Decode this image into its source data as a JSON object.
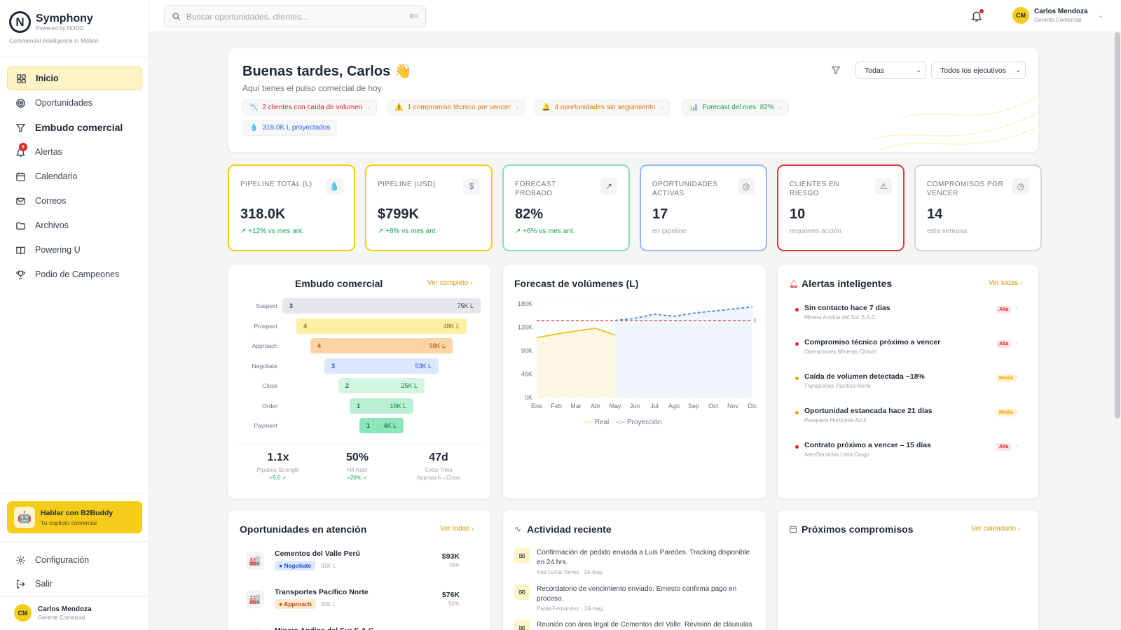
{
  "brand": {
    "name": "Symphony",
    "powered": "Powered by NODO",
    "tagline": "Commercial Intelligence in Motion",
    "mark": "N"
  },
  "nav": [
    {
      "label": "Inicio",
      "icon": "grid-icon"
    },
    {
      "label": "Oportunidades",
      "icon": "target-icon"
    },
    {
      "label": "Embudo comercial",
      "icon": "funnel-icon"
    },
    {
      "label": "Alertas",
      "icon": "bell-icon",
      "badge": "8"
    },
    {
      "label": "Calendario",
      "icon": "calendar-icon"
    },
    {
      "label": "Correos",
      "icon": "mail-icon"
    },
    {
      "label": "Archivos",
      "icon": "folder-icon"
    },
    {
      "label": "Powering U",
      "icon": "book-icon"
    },
    {
      "label": "Podio de Campeones",
      "icon": "trophy-icon"
    }
  ],
  "buddy": {
    "title": "Hablar con B2Buddy",
    "subtitle": "Tu copiloto comercial"
  },
  "footer": {
    "settings": "Configuración",
    "logout": "Salir"
  },
  "user": {
    "initials": "CM",
    "name": "Carlos Mendoza",
    "role": "Gerente Comercial"
  },
  "search": {
    "placeholder": "Buscar oportunidades, clientes...",
    "shortcut": "⌘K"
  },
  "greeting": {
    "title": "Buenas tardes, Carlos 👋",
    "subtitle": "Aquí tienes el pulso comercial de hoy."
  },
  "filters": {
    "period": "Todas",
    "exec": "Todos los ejecutivos"
  },
  "pills": [
    {
      "icon": "📉",
      "text": "2 clientes con caída de volumen",
      "color": "#dc2626"
    },
    {
      "icon": "⚠️",
      "text": "1 compromiso técnico por vencer",
      "color": "#d97706"
    },
    {
      "icon": "🔔",
      "text": "4 oportunidades sin seguimiento",
      "color": "#d97706"
    },
    {
      "icon": "📊",
      "text": "Forecast del mes: 82%",
      "color": "#16a34a"
    },
    {
      "icon": "💧",
      "text": "318.0K L proyectados",
      "color": "#2563eb"
    }
  ],
  "kpis": [
    {
      "label": "PIPELINE TOTAL (L)",
      "value": "318.0K",
      "delta": "↗ +12% vs mes ant.",
      "icon": "💧",
      "border": "#f5cc1c",
      "grey": false
    },
    {
      "label": "PIPELINE (USD)",
      "value": "$799K",
      "delta": "↗ +8% vs mes ant.",
      "icon": "$",
      "border": "#f5cc1c",
      "grey": false
    },
    {
      "label": "FORECAST PROBADO",
      "value": "82%",
      "delta": "↗ +6% vs mes ant.",
      "icon": "↗",
      "border": "#86e0b0",
      "grey": false
    },
    {
      "label": "OPORTUNIDADES ACTIVAS",
      "value": "17",
      "delta": "en pipeline",
      "icon": "◎",
      "border": "#93b9f0",
      "grey": true
    },
    {
      "label": "CLIENTES EN RIESGO",
      "value": "10",
      "delta": "requieren acción",
      "icon": "⚠",
      "border": "#dc3a3a",
      "grey": true
    },
    {
      "label": "COMPROMISOS POR VENCER",
      "value": "14",
      "delta": "esta semana",
      "icon": "◷",
      "border": "#d4d5d8",
      "grey": true
    }
  ],
  "funnel": {
    "title": "Embudo comercial",
    "link": "Ver completo ›",
    "stages": [
      {
        "name": "Suspect",
        "count": "3",
        "vol": "75K L",
        "bg": "#e5e7eb",
        "fg": "#374151"
      },
      {
        "name": "Prospect",
        "count": "4",
        "vol": "48K L",
        "bg": "#fdf0a6",
        "fg": "#9a6b00"
      },
      {
        "name": "Approach",
        "count": "4",
        "vol": "98K L",
        "bg": "#fbd3a4",
        "fg": "#b45309"
      },
      {
        "name": "Negotiate",
        "count": "3",
        "vol": "53K L",
        "bg": "#dbe7fb",
        "fg": "#1d4ed8"
      },
      {
        "name": "Close",
        "count": "2",
        "vol": "25K L",
        "bg": "#d3f5e1",
        "fg": "#15803d"
      },
      {
        "name": "Order",
        "count": "1",
        "vol": "16K L",
        "bg": "#b9efd2",
        "fg": "#15803d"
      },
      {
        "name": "Payment",
        "count": "1",
        "vol": "4K L",
        "bg": "#8fe5b8",
        "fg": "#065f46"
      }
    ],
    "metrics": [
      {
        "value": "1.1x",
        "label": "Pipeline Strength",
        "sub": ">5.0 ✓"
      },
      {
        "value": "50%",
        "label": "Hit Rate",
        "sub": ">20% ✓"
      },
      {
        "value": "47d",
        "label": "Cycle Time",
        "sub": "Approach→Close"
      }
    ]
  },
  "forecast": {
    "title": "Forecast de volúmenes (L)",
    "legend_real": "Real",
    "legend_proj": "Proyección"
  },
  "chart_data": {
    "type": "line",
    "x": [
      "Ene",
      "Feb",
      "Mar",
      "Abr",
      "May",
      "Jun",
      "Jul",
      "Ago",
      "Sep",
      "Oct",
      "Nov",
      "Dic"
    ],
    "yticks": [
      "180K",
      "135K",
      "90K",
      "45K",
      "0K"
    ],
    "ylim": [
      0,
      180000
    ],
    "series": [
      {
        "name": "Real",
        "color": "#e8c320",
        "values": [
          115000,
          122000,
          128000,
          133000,
          120000,
          null,
          null,
          null,
          null,
          null,
          null,
          null
        ]
      },
      {
        "name": "Proyección",
        "color": "#3b82f6",
        "values": [
          null,
          null,
          null,
          null,
          148000,
          152000,
          160000,
          156000,
          162000,
          166000,
          170000,
          174000
        ]
      }
    ],
    "target": 148000
  },
  "alerts": {
    "title": "Alertas inteligentes",
    "link": "Ver todas ›",
    "items": [
      {
        "title": "Sin contacto hace 7 días",
        "sub": "Minera Andina del Sur S.A.C.",
        "tag": "Alta",
        "color": "#dc2626"
      },
      {
        "title": "Compromiso técnico próximo a vencer",
        "sub": "Operaciones Mineras Chavín",
        "tag": "Alta",
        "color": "#dc2626"
      },
      {
        "title": "Caída de volumen detectada −18%",
        "sub": "Transportes Pacífico Norte",
        "tag": "Media",
        "color": "#e8a400"
      },
      {
        "title": "Oportunidad estancada hace 21 días",
        "sub": "Pesquera Horizonte Azul",
        "tag": "Media",
        "color": "#e8a400"
      },
      {
        "title": "Contrato próximo a vencer – 15 días",
        "sub": "AeroServicios Lima Cargo",
        "tag": "Alta",
        "color": "#dc2626"
      }
    ]
  },
  "opps": {
    "title": "Oportunidades en atención",
    "link": "Ver todas ›",
    "items": [
      {
        "name": "Cementos del Valle Perú",
        "stage": "● Negotiate",
        "vol": "31K L",
        "amount": "$93K",
        "pct": "70%",
        "bg": "#dbe7fb",
        "fg": "#1d4ed8"
      },
      {
        "name": "Transportes Pacífico Norte",
        "stage": "● Approach",
        "vol": "42K L",
        "amount": "$76K",
        "pct": "50%",
        "bg": "#fde8d0",
        "fg": "#c2410c"
      },
      {
        "name": "Minera Andina del Sur S.A.C.",
        "stage": "",
        "vol": "",
        "amount": "",
        "pct": "",
        "bg": "#fff",
        "fg": "#fff"
      }
    ]
  },
  "activity": {
    "title": "Actividad reciente",
    "items": [
      {
        "text": "Confirmación de pedido enviada a Luis Paredes. Tracking disponible en 24 hrs.",
        "meta": "Ana Lucía Torres  ·  24-may."
      },
      {
        "text": "Recordatorio de vencimiento enviado. Ernesto confirma pago en proceso.",
        "meta": "Paola Fernández  ·  24-may."
      },
      {
        "text": "Reunión con área legal de Cementos del Valle. Revisión de cláusulas de garantía.",
        "meta": ""
      }
    ]
  },
  "commitments": {
    "title": "Próximos compromisos",
    "link": "Ver calendario ›"
  }
}
